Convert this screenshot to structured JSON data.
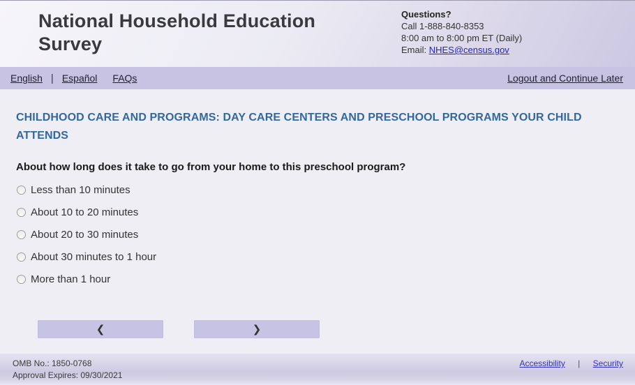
{
  "header": {
    "title": "National Household Education Survey",
    "questions_label": "Questions?",
    "phone": "Call 1-888-840-8353",
    "hours": "8:00 am to 8:00 pm ET (Daily)",
    "email_label": "Email: ",
    "email_link": "NHES@census.gov"
  },
  "nav": {
    "english": "English",
    "espanol": "Español",
    "faqs": "FAQs",
    "separator": "|",
    "logout": "Logout and Continue Later"
  },
  "main": {
    "section_title": "CHILDHOOD CARE AND PROGRAMS: DAY CARE CENTERS AND PRESCHOOL PROGRAMS YOUR CHILD ATTENDS",
    "question": "About how long does it take to go from your home to this preschool program?",
    "options": [
      {
        "label": "Less than 10 minutes",
        "selected": false
      },
      {
        "label": "About 10 to 20 minutes",
        "selected": false
      },
      {
        "label": "About 20 to 30 minutes",
        "selected": false
      },
      {
        "label": "About 30 minutes to 1 hour",
        "selected": false
      },
      {
        "label": "More than 1 hour",
        "selected": false
      }
    ],
    "back_icon": "❮",
    "next_icon": "❯"
  },
  "footer": {
    "omb": "OMB No.: 1850-0768",
    "expires": "Approval Expires: 09/30/2021",
    "accessibility": "Accessibility",
    "separator": "|",
    "security": "Security"
  },
  "colors": {
    "nav_purple": "#c8c3e2",
    "heading_blue": "#33689f",
    "link_blue": "#2323cc",
    "footer_link_blue": "#3232b8"
  }
}
